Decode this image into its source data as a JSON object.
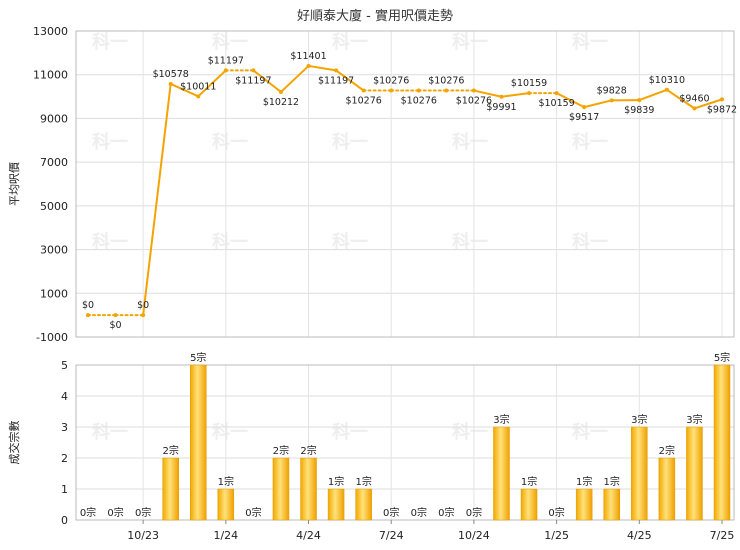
{
  "chart_data": [
    {
      "type": "line",
      "title": "好順泰大廈 - 實用呎價走勢",
      "ylabel": "平均呎價",
      "ylim": [
        -1000,
        13000
      ],
      "yticks": [
        "13000",
        "11000",
        "9000",
        "7000",
        "5000",
        "3000",
        "1000",
        "-1000"
      ],
      "grid": true,
      "color": "#f5a300",
      "points": [
        {
          "v": 0,
          "label": "$0",
          "pos": "above",
          "dotted_next": true
        },
        {
          "v": 0,
          "label": "$0",
          "pos": "below",
          "dotted_next": true
        },
        {
          "v": 0,
          "label": "$0",
          "pos": "above",
          "dotted_next": false
        },
        {
          "v": 10578,
          "label": "$10578",
          "pos": "above",
          "dotted_next": false
        },
        {
          "v": 10011,
          "label": "$10011",
          "pos": "above",
          "dotted_next": false
        },
        {
          "v": 11197,
          "label": "$11197",
          "pos": "above",
          "dotted_next": true
        },
        {
          "v": 11197,
          "label": "$11197",
          "pos": "below",
          "dotted_next": false
        },
        {
          "v": 10212,
          "label": "$10212",
          "pos": "below",
          "dotted_next": false
        },
        {
          "v": 11401,
          "label": "$11401",
          "pos": "above",
          "dotted_next": false
        },
        {
          "v": 11197,
          "label": "$11197",
          "pos": "below",
          "dotted_next": false
        },
        {
          "v": 10276,
          "label": "$10276",
          "pos": "below",
          "dotted_next": true
        },
        {
          "v": 10276,
          "label": "$10276",
          "pos": "above",
          "dotted_next": true
        },
        {
          "v": 10276,
          "label": "$10276",
          "pos": "below",
          "dotted_next": true
        },
        {
          "v": 10276,
          "label": "$10276",
          "pos": "above",
          "dotted_next": true
        },
        {
          "v": 10276,
          "label": "$10276",
          "pos": "below",
          "dotted_next": false
        },
        {
          "v": 9991,
          "label": "$9991",
          "pos": "below",
          "dotted_next": false
        },
        {
          "v": 10159,
          "label": "$10159",
          "pos": "above",
          "dotted_next": true
        },
        {
          "v": 10159,
          "label": "$10159",
          "pos": "below",
          "dotted_next": false
        },
        {
          "v": 9517,
          "label": "$9517",
          "pos": "below",
          "dotted_next": false
        },
        {
          "v": 9828,
          "label": "$9828",
          "pos": "above",
          "dotted_next": false
        },
        {
          "v": 9839,
          "label": "$9839",
          "pos": "below",
          "dotted_next": false
        },
        {
          "v": 10310,
          "label": "$10310",
          "pos": "above",
          "dotted_next": false
        },
        {
          "v": 9460,
          "label": "$9460",
          "pos": "above",
          "dotted_next": false
        },
        {
          "v": 9872,
          "label": "$9872",
          "pos": "below",
          "dotted_next": false
        }
      ]
    },
    {
      "type": "bar",
      "ylabel": "成交宗數",
      "ylim": [
        0,
        5
      ],
      "yticks": [
        "5",
        "4",
        "3",
        "2",
        "1",
        "0"
      ],
      "grid": true,
      "categories": [
        "10/23",
        "1/24",
        "4/24",
        "7/24",
        "10/24",
        "1/25",
        "4/25",
        "7/25"
      ],
      "values": [
        0,
        0,
        0,
        2,
        5,
        1,
        0,
        2,
        2,
        1,
        1,
        0,
        0,
        0,
        0,
        3,
        1,
        0,
        1,
        1,
        3,
        2,
        3,
        5
      ],
      "labels": [
        "0宗",
        "0宗",
        "0宗",
        "2宗",
        "5宗",
        "1宗",
        "0宗",
        "2宗",
        "2宗",
        "1宗",
        "1宗",
        "0宗",
        "0宗",
        "0宗",
        "0宗",
        "3宗",
        "1宗",
        "0宗",
        "1宗",
        "1宗",
        "3宗",
        "2宗",
        "3宗",
        "5宗"
      ]
    }
  ],
  "watermark": "科一"
}
